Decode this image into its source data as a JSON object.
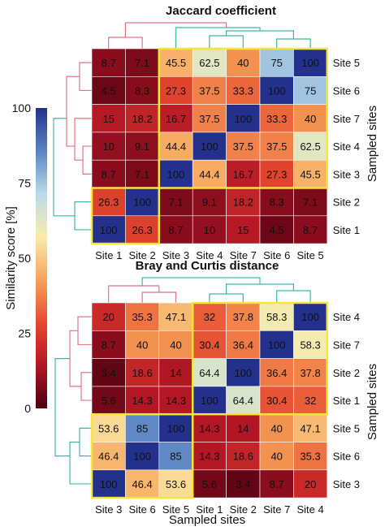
{
  "colorbar": {
    "label": "Similarity score [%]",
    "ticks": [
      "100",
      "75",
      "50",
      "25",
      "0"
    ],
    "tick_values": [
      100,
      75,
      50,
      25,
      0
    ],
    "colormap": [
      "#4a0010",
      "#b31625",
      "#e5482f",
      "#f7a35a",
      "#f9ecab",
      "#b9dbea",
      "#5a84c2",
      "#23318d"
    ]
  },
  "chart_data": [
    {
      "type": "heatmap",
      "title": "Jaccard coefficient",
      "xlabel": "",
      "ylabel": "Sampled sites",
      "columns": [
        "Site 1",
        "Site 2",
        "Site 3",
        "Site 4",
        "Site 7",
        "Site 6",
        "Site 5"
      ],
      "rows": [
        "Site 5",
        "Site 6",
        "Site 7",
        "Site 4",
        "Site 3",
        "Site 2",
        "Site 1"
      ],
      "values": [
        [
          "8.7",
          "7.1",
          "45.5",
          "62.5",
          "40",
          "75",
          "100"
        ],
        [
          "4.5",
          "8.3",
          "27.3",
          "37.5",
          "33.3",
          "100",
          "75"
        ],
        [
          "15",
          "18.2",
          "16.7",
          "37.5",
          "100",
          "33.3",
          "40"
        ],
        [
          "10",
          "9.1",
          "44.4",
          "100",
          "37.5",
          "37.5",
          "62.5"
        ],
        [
          "8.7",
          "7.1",
          "100",
          "44.4",
          "16.7",
          "27.3",
          "45.5"
        ],
        [
          "26.3",
          "100",
          "7.1",
          "9.1",
          "18.2",
          "8.3",
          "7.1"
        ],
        [
          "100",
          "26.3",
          "8.7",
          "10",
          "15",
          "4.5",
          "8.7"
        ]
      ],
      "clusters": [
        {
          "rows": [
            0,
            4
          ],
          "cols": [
            2,
            6
          ]
        },
        {
          "rows": [
            5,
            6
          ],
          "cols": [
            0,
            1
          ]
        }
      ]
    },
    {
      "type": "heatmap",
      "title": "Bray and Curtis distance",
      "xlabel": "Sampled sites",
      "ylabel": "Sampled sites",
      "columns": [
        "Site 3",
        "Site 6",
        "Site 5",
        "Site 1",
        "Site 2",
        "Site 7",
        "Site 4"
      ],
      "rows": [
        "Site 4",
        "Site 7",
        "Site 2",
        "Site 1",
        "Site 5",
        "Site 6",
        "Site 3"
      ],
      "values": [
        [
          "20",
          "35.3",
          "47.1",
          "32",
          "37.8",
          "58.3",
          "100"
        ],
        [
          "8.7",
          "40",
          "40",
          "30.4",
          "36.4",
          "100",
          "58.3"
        ],
        [
          "3.4",
          "18.6",
          "14",
          "64.4",
          "100",
          "36.4",
          "37.8"
        ],
        [
          "5.6",
          "14.3",
          "14.3",
          "100",
          "64.4",
          "30.4",
          "32"
        ],
        [
          "53.6",
          "85",
          "100",
          "14.3",
          "14",
          "40",
          "47.1"
        ],
        [
          "46.4",
          "100",
          "85",
          "14.3",
          "18.6",
          "40",
          "35.3"
        ],
        [
          "100",
          "46.4",
          "53.6",
          "5.6",
          "3.4",
          "8.7",
          "20"
        ]
      ],
      "clusters": [
        {
          "rows": [
            0,
            3
          ],
          "cols": [
            3,
            6
          ]
        },
        {
          "rows": [
            4,
            6
          ],
          "cols": [
            0,
            2
          ]
        }
      ]
    }
  ]
}
